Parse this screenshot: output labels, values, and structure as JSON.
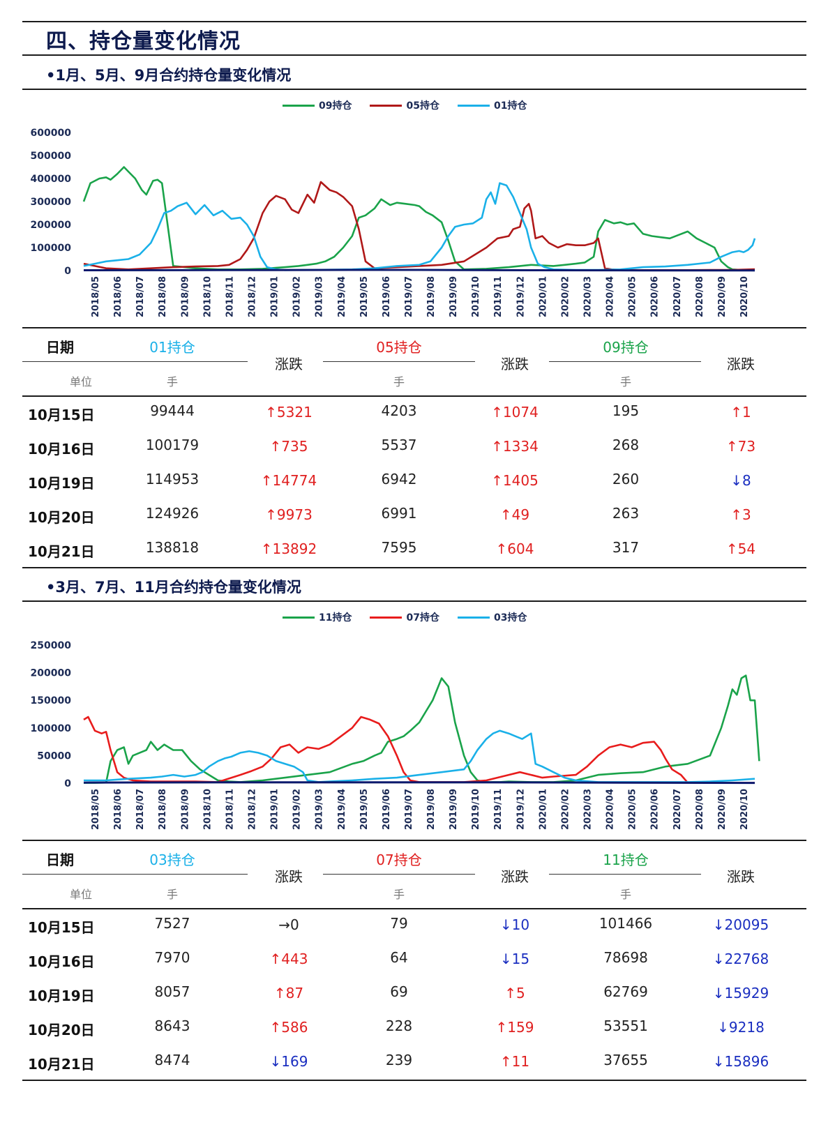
{
  "title": "四、持仓量变化情况",
  "section1": {
    "subtitle": "•1月、5月、9月合约持仓量变化情况",
    "table": {
      "date_header": "日期",
      "unit_label": "单位",
      "col_headers": [
        "01持仓",
        "05持仓",
        "09持仓"
      ],
      "change_header": "涨跌",
      "unit": "手",
      "rows": [
        {
          "date": "10月15日",
          "v1": "99444",
          "c1": "↑5321",
          "v2": "4203",
          "c2": "↑1074",
          "v3": "195",
          "c3": "↑1"
        },
        {
          "date": "10月16日",
          "v1": "100179",
          "c1": "↑735",
          "v2": "5537",
          "c2": "↑1334",
          "v3": "268",
          "c3": "↑73"
        },
        {
          "date": "10月19日",
          "v1": "114953",
          "c1": "↑14774",
          "v2": "6942",
          "c2": "↑1405",
          "v3": "260",
          "c3": "↓8"
        },
        {
          "date": "10月20日",
          "v1": "124926",
          "c1": "↑9973",
          "v2": "6991",
          "c2": "↑49",
          "v3": "263",
          "c3": "↑3"
        },
        {
          "date": "10月21日",
          "v1": "138818",
          "c1": "↑13892",
          "v2": "7595",
          "c2": "↑604",
          "v3": "317",
          "c3": "↑54"
        }
      ]
    }
  },
  "section2": {
    "subtitle": "•3月、7月、11月合约持仓量变化情况",
    "table": {
      "date_header": "日期",
      "unit_label": "单位",
      "col_headers": [
        "03持仓",
        "07持仓",
        "11持仓"
      ],
      "change_header": "涨跌",
      "unit": "手",
      "rows": [
        {
          "date": "10月15日",
          "v1": "7527",
          "c1": "→0",
          "v2": "79",
          "c2": "↓10",
          "v3": "101466",
          "c3": "↓20095"
        },
        {
          "date": "10月16日",
          "v1": "7970",
          "c1": "↑443",
          "v2": "64",
          "c2": "↓15",
          "v3": "78698",
          "c3": "↓22768"
        },
        {
          "date": "10月19日",
          "v1": "8057",
          "c1": "↑87",
          "v2": "69",
          "c2": "↑5",
          "v3": "62769",
          "c3": "↓15929"
        },
        {
          "date": "10月20日",
          "v1": "8643",
          "c1": "↑586",
          "v2": "228",
          "c2": "↑159",
          "v3": "53551",
          "c3": "↓9218"
        },
        {
          "date": "10月21日",
          "v1": "8474",
          "c1": "↓169",
          "v2": "239",
          "c2": "↑11",
          "v3": "37655",
          "c3": "↓15896"
        }
      ]
    }
  },
  "colors": {
    "green": "#1aa34a",
    "red1": "#b01818",
    "red2": "#e81c1c",
    "blue": "#1ab0e8",
    "navy": "#0d1a6e",
    "up": "#e02020",
    "down": "#1a2ec0"
  },
  "chart_data": [
    {
      "type": "line",
      "title": "",
      "xlabel": "",
      "ylabel": "",
      "categories": [
        "2018/05",
        "2018/06",
        "2018/07",
        "2018/08",
        "2018/09",
        "2018/10",
        "2018/11",
        "2018/12",
        "2019/01",
        "2019/02",
        "2019/03",
        "2019/04",
        "2019/05",
        "2019/06",
        "2019/07",
        "2019/08",
        "2019/09",
        "2019/10",
        "2019/11",
        "2019/12",
        "2020/01",
        "2020/02",
        "2020/03",
        "2020/04",
        "2020/05",
        "2020/06",
        "2020/07",
        "2020/08",
        "2020/09",
        "2020/10"
      ],
      "y_ticks": [
        "600000",
        "500000",
        "400000",
        "300000",
        "200000",
        "100000",
        "0"
      ],
      "ylim": [
        0,
        600000
      ],
      "legend": "top",
      "series": [
        {
          "name": "09持仓",
          "color": "#1aa34a",
          "x": [
            0,
            0.3,
            0.7,
            1,
            1.2,
            1.5,
            1.8,
            2,
            2.3,
            2.6,
            2.8,
            3.1,
            3.3,
            3.5,
            4,
            5,
            6,
            7,
            8,
            9,
            9.6,
            10,
            10.4,
            10.8,
            11.2,
            11.6,
            12,
            12.3,
            12.6,
            13,
            13.3,
            13.7,
            14,
            14.4,
            14.8,
            15,
            15.3,
            15.6,
            16,
            16.3,
            16.6,
            17,
            18,
            19,
            20,
            21,
            21.5,
            22,
            22.4,
            22.8,
            23,
            23.3,
            23.7,
            24,
            24.3,
            24.6,
            25,
            25.4,
            25.8,
            26.2,
            26.6,
            27,
            27.4,
            27.8,
            28.2,
            28.5,
            28.8,
            29,
            29.5,
            29.8,
            30
          ],
          "y": [
            300000,
            380000,
            400000,
            405000,
            395000,
            420000,
            450000,
            430000,
            400000,
            350000,
            330000,
            390000,
            395000,
            380000,
            20000,
            10000,
            5000,
            5000,
            8000,
            15000,
            20000,
            25000,
            30000,
            40000,
            60000,
            100000,
            150000,
            230000,
            240000,
            270000,
            310000,
            285000,
            295000,
            290000,
            285000,
            280000,
            255000,
            240000,
            210000,
            130000,
            40000,
            5000,
            8000,
            15000,
            25000,
            20000,
            25000,
            30000,
            35000,
            60000,
            170000,
            220000,
            205000,
            210000,
            200000,
            205000,
            160000,
            150000,
            145000,
            140000,
            155000,
            170000,
            140000,
            120000,
            100000,
            40000,
            15000,
            5000,
            2000,
            1000,
            500
          ]
        },
        {
          "name": "05持仓",
          "color": "#b01818",
          "x": [
            0,
            0.5,
            1,
            2,
            3,
            4,
            5,
            6,
            6.5,
            7,
            7.3,
            7.6,
            8,
            8.3,
            8.6,
            9,
            9.3,
            9.6,
            10,
            10.3,
            10.6,
            11,
            11.3,
            11.6,
            12,
            12.3,
            12.6,
            13,
            14,
            15,
            16,
            17,
            17.5,
            18,
            18.5,
            19,
            19.2,
            19.5,
            19.7,
            19.9,
            20,
            20.2,
            20.5,
            20.8,
            21.2,
            21.6,
            22,
            22.4,
            22.8,
            23,
            23.3,
            23.6,
            24,
            25,
            26,
            27,
            28,
            29,
            30
          ],
          "y": [
            30000,
            20000,
            10000,
            5000,
            10000,
            15000,
            18000,
            20000,
            25000,
            50000,
            90000,
            140000,
            250000,
            300000,
            325000,
            310000,
            265000,
            250000,
            330000,
            295000,
            385000,
            350000,
            340000,
            320000,
            280000,
            180000,
            40000,
            10000,
            15000,
            20000,
            25000,
            40000,
            70000,
            100000,
            140000,
            150000,
            180000,
            190000,
            270000,
            290000,
            260000,
            140000,
            150000,
            120000,
            100000,
            115000,
            110000,
            110000,
            120000,
            140000,
            10000,
            5000,
            3000,
            2000,
            2000,
            2000,
            3000,
            3000,
            6000
          ]
        },
        {
          "name": "01持仓",
          "color": "#1ab0e8",
          "x": [
            0,
            0.5,
            1,
            1.5,
            2,
            2.5,
            3,
            3.3,
            3.6,
            3.9,
            4.2,
            4.6,
            5,
            5.4,
            5.8,
            6.2,
            6.6,
            7,
            7.3,
            7.6,
            7.9,
            8.2,
            8.6,
            9,
            10,
            11,
            12,
            13,
            14,
            15,
            15.5,
            16,
            16.3,
            16.6,
            17,
            17.4,
            17.8,
            18,
            18.2,
            18.4,
            18.6,
            18.9,
            19.2,
            19.5,
            19.8,
            20,
            20.3,
            20.6,
            21,
            22,
            23,
            24,
            25,
            26,
            27,
            28,
            28.5,
            29,
            29.3,
            29.5,
            29.7,
            29.9,
            30
          ],
          "y": [
            20000,
            30000,
            40000,
            45000,
            50000,
            70000,
            120000,
            180000,
            250000,
            260000,
            280000,
            295000,
            245000,
            285000,
            240000,
            260000,
            225000,
            230000,
            200000,
            150000,
            60000,
            15000,
            5000,
            2000,
            3000,
            4000,
            5000,
            10000,
            20000,
            25000,
            40000,
            100000,
            150000,
            190000,
            200000,
            205000,
            230000,
            310000,
            340000,
            290000,
            380000,
            370000,
            320000,
            250000,
            180000,
            100000,
            30000,
            15000,
            5000,
            3000,
            3000,
            5000,
            15000,
            18000,
            25000,
            35000,
            60000,
            80000,
            85000,
            80000,
            90000,
            110000,
            140000
          ]
        },
        {
          "name": "",
          "color": "#0d1a6e",
          "x": [
            0,
            6,
            12,
            15,
            17,
            20,
            25,
            30
          ],
          "y": [
            1500,
            2000,
            3000,
            3000,
            2000,
            1500,
            1000,
            500
          ]
        }
      ]
    },
    {
      "type": "line",
      "title": "",
      "xlabel": "",
      "ylabel": "",
      "categories": [
        "2018/05",
        "2018/06",
        "2018/07",
        "2018/08",
        "2018/09",
        "2018/10",
        "2018/11",
        "2018/12",
        "2019/01",
        "2019/02",
        "2019/03",
        "2019/04",
        "2019/05",
        "2019/06",
        "2019/07",
        "2019/08",
        "2019/09",
        "2019/10",
        "2019/11",
        "2019/12",
        "2020/01",
        "2020/02",
        "2020/03",
        "2020/04",
        "2020/05",
        "2020/06",
        "2020/07",
        "2020/08",
        "2020/09",
        "2020/10"
      ],
      "y_ticks": [
        "250000",
        "200000",
        "150000",
        "100000",
        "50000",
        "0"
      ],
      "ylim": [
        0,
        250000
      ],
      "legend": "top",
      "series": [
        {
          "name": "11持仓",
          "color": "#1aa34a",
          "x": [
            0,
            0.5,
            1,
            1.2,
            1.5,
            1.8,
            2,
            2.2,
            2.5,
            2.8,
            3,
            3.3,
            3.6,
            4,
            4.4,
            4.8,
            5.2,
            5.6,
            6,
            6.5,
            7,
            8,
            9,
            10,
            11,
            12,
            12.5,
            13,
            13.3,
            13.6,
            14,
            14.3,
            14.6,
            15,
            15.3,
            15.6,
            16,
            16.3,
            16.6,
            17,
            17.3,
            17.6,
            18,
            18.3,
            18.6,
            19,
            20,
            21,
            22,
            23,
            24,
            25,
            26,
            27,
            28,
            28.5,
            28.8,
            29,
            29.2,
            29.4,
            29.6,
            29.8,
            30,
            30.2
          ],
          "y": [
            500,
            500,
            1000,
            40000,
            60000,
            65000,
            35000,
            50000,
            55000,
            60000,
            75000,
            60000,
            70000,
            60000,
            60000,
            40000,
            25000,
            15000,
            5000,
            3000,
            2000,
            5000,
            10000,
            15000,
            20000,
            35000,
            40000,
            50000,
            55000,
            75000,
            80000,
            85000,
            95000,
            110000,
            130000,
            150000,
            190000,
            175000,
            110000,
            50000,
            20000,
            5000,
            2000,
            2000,
            2000,
            3000,
            2000,
            2000,
            5000,
            15000,
            18000,
            20000,
            30000,
            35000,
            50000,
            100000,
            140000,
            170000,
            160000,
            190000,
            195000,
            150000,
            150000,
            40000
          ]
        },
        {
          "name": "07持仓",
          "color": "#e81c1c",
          "x": [
            0,
            0.2,
            0.5,
            0.8,
            1,
            1.2,
            1.5,
            1.8,
            2.2,
            3,
            4,
            5,
            6,
            7,
            7.5,
            8,
            8.4,
            8.8,
            9.2,
            9.6,
            10,
            10.5,
            11,
            11.5,
            12,
            12.4,
            12.8,
            13.2,
            13.6,
            14,
            14.3,
            14.6,
            15,
            16,
            17,
            18,
            19,
            19.5,
            20,
            20.5,
            21,
            22,
            22.5,
            23,
            23.5,
            24,
            24.5,
            25,
            25.5,
            25.8,
            26,
            26.3,
            26.7,
            27,
            28,
            29,
            30
          ],
          "y": [
            115000,
            120000,
            95000,
            90000,
            93000,
            60000,
            20000,
            10000,
            5000,
            3000,
            3000,
            3000,
            2000,
            15000,
            22000,
            30000,
            45000,
            65000,
            70000,
            55000,
            65000,
            62000,
            70000,
            85000,
            100000,
            120000,
            115000,
            108000,
            85000,
            50000,
            20000,
            5000,
            2000,
            2000,
            2000,
            5000,
            15000,
            20000,
            15000,
            10000,
            12000,
            15000,
            30000,
            50000,
            65000,
            70000,
            65000,
            73000,
            75000,
            60000,
            45000,
            25000,
            15000,
            1000,
            500,
            500,
            500
          ]
        },
        {
          "name": "03持仓",
          "color": "#1ab0e8",
          "x": [
            0,
            1,
            2,
            3,
            3.5,
            4,
            4.5,
            5,
            5.3,
            5.6,
            6,
            6.3,
            6.6,
            7,
            7.4,
            7.8,
            8.2,
            8.6,
            9,
            9.4,
            9.8,
            10,
            10.5,
            11,
            12,
            13,
            14,
            15,
            16,
            17,
            17.3,
            17.6,
            18,
            18.3,
            18.6,
            19,
            19.3,
            19.6,
            20,
            20.2,
            20.5,
            21,
            21.5,
            22,
            23,
            24,
            25,
            26,
            27,
            28,
            29,
            30
          ],
          "y": [
            5000,
            5000,
            8000,
            10000,
            12000,
            15000,
            12000,
            15000,
            20000,
            30000,
            40000,
            45000,
            48000,
            55000,
            58000,
            55000,
            50000,
            40000,
            35000,
            30000,
            20000,
            5000,
            2000,
            3000,
            5000,
            8000,
            10000,
            15000,
            20000,
            25000,
            40000,
            60000,
            80000,
            90000,
            95000,
            90000,
            85000,
            80000,
            90000,
            35000,
            30000,
            20000,
            10000,
            5000,
            2000,
            2000,
            2000,
            2000,
            2000,
            3000,
            5000,
            8000
          ]
        },
        {
          "name": "",
          "color": "#0d1a6e",
          "x": [
            0,
            6,
            12,
            18,
            24,
            30
          ],
          "y": [
            1000,
            1500,
            1500,
            1500,
            1000,
            500
          ]
        }
      ]
    }
  ]
}
